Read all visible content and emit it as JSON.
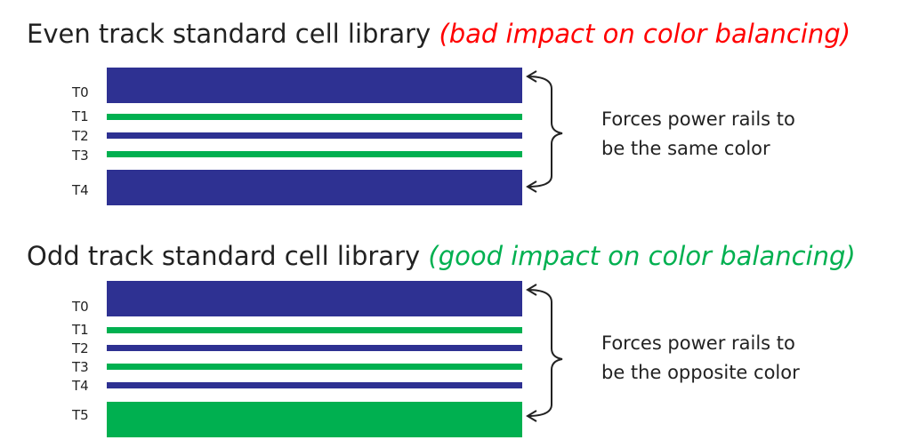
{
  "sections": [
    {
      "title": "Even track standard cell library",
      "note": "(bad impact on color balancing)",
      "tracks": [
        "T0",
        "T1",
        "T2",
        "T3",
        "T4"
      ],
      "caption": [
        "Forces power rails to",
        "be the same color"
      ]
    },
    {
      "title": "Odd track standard cell library",
      "note": "(good impact on color balancing)",
      "tracks": [
        "T0",
        "T1",
        "T2",
        "T3",
        "T4",
        "T5"
      ],
      "caption": [
        "Forces power rails to",
        "be the opposite color"
      ]
    }
  ]
}
